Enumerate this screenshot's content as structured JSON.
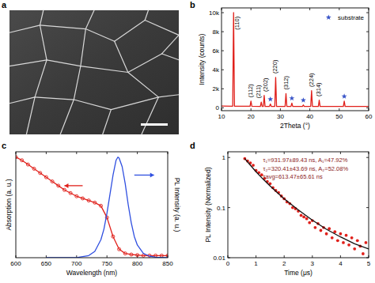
{
  "chart_data": [
    {
      "type": "image",
      "title": "a"
    },
    {
      "type": "line",
      "title": "b",
      "x_label": "2Theta (°)",
      "y_label": "Intensity (counts)",
      "xlim": [
        10,
        60
      ],
      "ylim": [
        -300,
        10500
      ],
      "xticks": [
        10,
        20,
        30,
        40,
        50,
        60
      ],
      "yticks": [
        0,
        {
          "value": 2000,
          "label": "2k"
        },
        {
          "value": 4000,
          "label": "4k"
        },
        {
          "value": 6000,
          "label": "6k"
        },
        {
          "value": 8000,
          "label": "8k"
        },
        {
          "value": 10000,
          "label": "10k"
        }
      ],
      "legend": "upper-right",
      "series": [
        {
          "color": "#e0201b",
          "x": [
            10,
            13.8,
            14.1,
            14.4,
            19.7,
            20,
            20.3,
            23.2,
            23.5,
            23.8,
            24.2,
            24.5,
            24.8,
            26.3,
            26.6,
            26.9,
            28.1,
            28.4,
            28.7,
            31.6,
            31.9,
            32.2,
            33.6,
            33.9,
            34.2,
            37.5,
            37.8,
            38.1,
            40.3,
            40.6,
            40.9,
            42.9,
            43.2,
            43.5,
            51.4,
            51.7,
            52,
            60
          ],
          "values": [
            180,
            170,
            10000,
            170,
            160,
            700,
            160,
            150,
            600,
            150,
            150,
            1300,
            150,
            150,
            400,
            150,
            150,
            3200,
            150,
            150,
            1500,
            150,
            150,
            500,
            150,
            150,
            300,
            150,
            150,
            1800,
            150,
            150,
            800,
            150,
            140,
            700,
            140,
            140
          ]
        },
        {
          "name": "substrate",
          "type": "scatter",
          "marker": "star",
          "color": "#3a55c8",
          "x": [
            26.6,
            33.9,
            37.8,
            51.7
          ],
          "values": [
            900,
            1000,
            800,
            1200
          ]
        }
      ],
      "annotations": [
        {
          "text": "(110)",
          "x": 15.3,
          "y": 8200
        },
        {
          "text": "(112)",
          "x": 20,
          "y": 1100
        },
        {
          "text": "(211)",
          "x": 22.6,
          "y": 1000
        },
        {
          "text": "(202)",
          "x": 25.1,
          "y": 1700
        },
        {
          "text": "(220)",
          "x": 28.4,
          "y": 3600
        },
        {
          "text": "(312)",
          "x": 32,
          "y": 1900
        },
        {
          "text": "(224)",
          "x": 40.6,
          "y": 2200
        },
        {
          "text": "(314)",
          "x": 43.2,
          "y": 1200
        }
      ]
    },
    {
      "type": "line",
      "title": "c",
      "x_label": "Wavelength (nm)",
      "y_label": "Absorption (a. u.)",
      "y2_label": "PL Intensity (a. u.)",
      "xlim": [
        600,
        850
      ],
      "ylim": [
        0,
        1
      ],
      "y2lim": [
        0,
        1
      ],
      "xticks": [
        600,
        650,
        700,
        750,
        800,
        850
      ],
      "tick_labels": "x",
      "series": [
        {
          "color": "#e0201b",
          "marker": "open-circle",
          "x": [
            600,
            610,
            620,
            630,
            640,
            650,
            660,
            670,
            680,
            690,
            700,
            710,
            720,
            730,
            740,
            750,
            760,
            770,
            780,
            790,
            800,
            810,
            820,
            830,
            840,
            850
          ],
          "values": [
            0.95,
            0.92,
            0.88,
            0.84,
            0.8,
            0.76,
            0.72,
            0.68,
            0.64,
            0.61,
            0.58,
            0.56,
            0.54,
            0.52,
            0.49,
            0.38,
            0.2,
            0.08,
            0.04,
            0.03,
            0.025,
            0.02,
            0.02,
            0.02,
            0.02,
            0.02
          ]
        },
        {
          "color": "#2f4fe0",
          "axis": "y2",
          "x": [
            650,
            700,
            710,
            720,
            730,
            740,
            745,
            750,
            755,
            760,
            765,
            768,
            770,
            775,
            780,
            785,
            790,
            795,
            800,
            810,
            820,
            830,
            850
          ],
          "values": [
            0,
            0,
            0.01,
            0.02,
            0.06,
            0.17,
            0.27,
            0.42,
            0.6,
            0.78,
            0.92,
            0.95,
            0.94,
            0.86,
            0.7,
            0.5,
            0.33,
            0.2,
            0.12,
            0.04,
            0.015,
            0.005,
            0
          ]
        }
      ]
    },
    {
      "type": "scatter",
      "title": "d",
      "x_label": "Time (μs)",
      "y_label": "PL Intensity (Normalized)",
      "xlim": [
        0,
        5
      ],
      "ylim": [
        0.01,
        1.3
      ],
      "log": "y",
      "xticks": [
        0,
        1,
        2,
        3,
        4,
        5
      ],
      "yticks": [
        0.01,
        0.1,
        1
      ],
      "series": [
        {
          "color": "#e0201b",
          "marker": "circle",
          "x": [
            0.6,
            0.7,
            0.8,
            0.9,
            1.0,
            1.1,
            1.2,
            1.3,
            1.4,
            1.5,
            1.6,
            1.7,
            1.8,
            1.9,
            2.0,
            2.1,
            2.2,
            2.3,
            2.4,
            2.5,
            2.6,
            2.7,
            2.8,
            2.9,
            3.0,
            3.1,
            3.2,
            3.3,
            3.4,
            3.5,
            3.6,
            3.7,
            3.8,
            3.9,
            4.0,
            4.1,
            4.2,
            4.3,
            4.4,
            4.5,
            4.6,
            4.7,
            4.8,
            4.9
          ],
          "values": [
            0.95,
            0.85,
            0.78,
            0.7,
            0.55,
            0.5,
            0.45,
            0.38,
            0.33,
            0.3,
            0.25,
            0.22,
            0.2,
            0.17,
            0.15,
            0.13,
            0.12,
            0.1,
            0.095,
            0.085,
            0.07,
            0.065,
            0.06,
            0.05,
            0.055,
            0.04,
            0.048,
            0.035,
            0.04,
            0.03,
            0.038,
            0.025,
            0.033,
            0.022,
            0.03,
            0.02,
            0.028,
            0.018,
            0.025,
            0.015,
            0.022,
            0.017,
            0.012,
            0.02
          ]
        },
        {
          "type": "line",
          "color": "#111111",
          "x": [
            0.6,
            0.8,
            1.0,
            1.25,
            1.5,
            1.75,
            2,
            2.5,
            3,
            3.5,
            4,
            4.5,
            5
          ],
          "values": [
            0.95,
            0.7,
            0.52,
            0.37,
            0.27,
            0.2,
            0.15,
            0.09,
            0.056,
            0.037,
            0.026,
            0.019,
            0.015
          ]
        }
      ],
      "annotations": [
        {
          "text": "τ₁=931.97±89.43 ns, A₁=47.92%",
          "x": 1.25,
          "y": 0.8
        },
        {
          "text": "τ₂=320.41±43.69 ns, A₂=52.08%",
          "x": 1.25,
          "y": 0.55
        },
        {
          "text": "τavg=613.47±65.61 ns",
          "x": 1.25,
          "y": 0.38
        }
      ]
    }
  ]
}
